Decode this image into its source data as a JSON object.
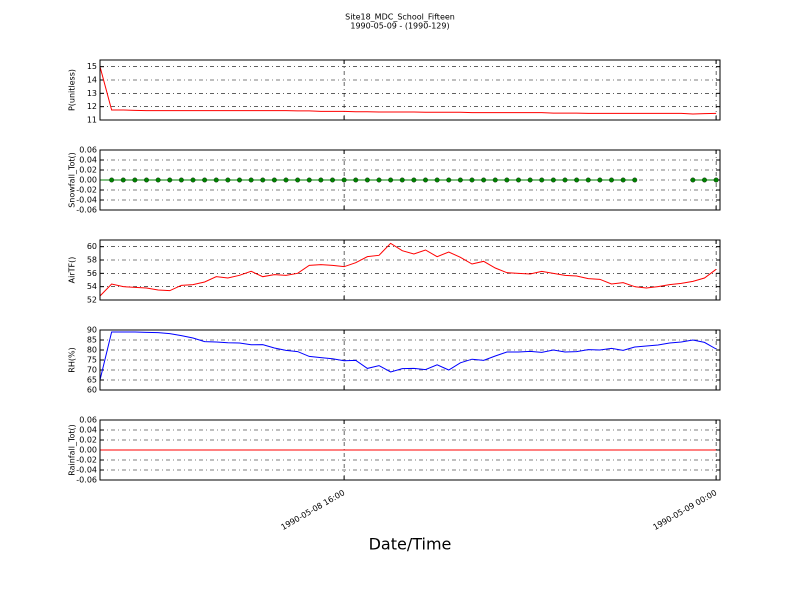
{
  "title": "Site18_MDC_School_Fifteen",
  "subtitle": "1990-05-09 - (1990-129)",
  "xlabel": "Date/Time",
  "x": [
    "1990-05-08 10:45",
    "1990-05-08 11:00",
    "1990-05-08 11:15",
    "1990-05-08 11:30",
    "1990-05-08 11:45",
    "1990-05-08 12:00",
    "1990-05-08 12:15",
    "1990-05-08 12:30",
    "1990-05-08 12:45",
    "1990-05-08 13:00",
    "1990-05-08 13:15",
    "1990-05-08 13:30",
    "1990-05-08 13:45",
    "1990-05-08 14:00",
    "1990-05-08 14:15",
    "1990-05-08 14:30",
    "1990-05-08 14:45",
    "1990-05-08 15:00",
    "1990-05-08 15:15",
    "1990-05-08 15:30",
    "1990-05-08 15:45",
    "1990-05-08 16:00",
    "1990-05-08 16:15",
    "1990-05-08 16:30",
    "1990-05-08 16:45",
    "1990-05-08 17:00",
    "1990-05-08 17:15",
    "1990-05-08 17:30",
    "1990-05-08 17:45",
    "1990-05-08 18:00",
    "1990-05-08 18:15",
    "1990-05-08 18:30",
    "1990-05-08 18:45",
    "1990-05-08 19:00",
    "1990-05-08 19:15",
    "1990-05-08 19:30",
    "1990-05-08 19:45",
    "1990-05-08 20:00",
    "1990-05-08 20:15",
    "1990-05-08 20:30",
    "1990-05-08 20:45",
    "1990-05-08 21:00",
    "1990-05-08 21:15",
    "1990-05-08 21:30",
    "1990-05-08 21:45",
    "1990-05-08 22:00",
    "1990-05-08 22:15",
    "1990-05-08 22:30",
    "1990-05-08 22:45",
    "1990-05-08 23:00",
    "1990-05-08 23:15",
    "1990-05-08 23:30",
    "1990-05-08 23:45",
    "1990-05-09 00:00"
  ],
  "xlim": [
    "1990-05-08 10:45",
    "1990-05-09 00:05"
  ],
  "xticks": [
    "1990-05-08 16:00",
    "1990-05-09 00:00"
  ],
  "chart_data": [
    {
      "type": "line",
      "ylabel": "P(unitless)",
      "color": "#ff0000",
      "ylim": [
        11,
        15.5
      ],
      "yticks": [
        11,
        12,
        13,
        14,
        15
      ],
      "grid": true,
      "values": [
        15.0,
        11.75,
        11.75,
        11.72,
        11.7,
        11.7,
        11.7,
        11.7,
        11.7,
        11.7,
        11.7,
        11.7,
        11.7,
        11.7,
        11.7,
        11.7,
        11.7,
        11.68,
        11.68,
        11.65,
        11.65,
        11.65,
        11.62,
        11.62,
        11.6,
        11.6,
        11.6,
        11.6,
        11.58,
        11.58,
        11.58,
        11.58,
        11.55,
        11.55,
        11.55,
        11.55,
        11.55,
        11.55,
        11.55,
        11.52,
        11.52,
        11.52,
        11.5,
        11.5,
        11.5,
        11.5,
        11.5,
        11.5,
        11.5,
        11.5,
        11.5,
        11.45,
        11.48,
        11.5
      ]
    },
    {
      "type": "line",
      "ylabel": "Snowfall_Tot()",
      "color": "#008000",
      "marker": true,
      "ylim": [
        -0.06,
        0.06
      ],
      "yticks": [
        -0.06,
        -0.04,
        -0.02,
        {
          "value": 0,
          "label": "0.00"
        },
        0.02,
        0.04,
        0.06
      ],
      "grid": true,
      "values": [
        0,
        0,
        0,
        0,
        0,
        0,
        0,
        0,
        0,
        0,
        0,
        0,
        0,
        0,
        0,
        0,
        0,
        0,
        0,
        0,
        0,
        0,
        0,
        0,
        0,
        0,
        0,
        0,
        0,
        0,
        0,
        0,
        0,
        0,
        0,
        0,
        0,
        0,
        0,
        0,
        0,
        0,
        0,
        0,
        0,
        0,
        0,
        null,
        null,
        null,
        null,
        0,
        0,
        0
      ]
    },
    {
      "type": "line",
      "ylabel": "AirTF()",
      "color": "#ff0000",
      "ylim": [
        52,
        61
      ],
      "yticks": [
        52,
        54,
        56,
        58,
        60
      ],
      "grid": true,
      "values": [
        52.6,
        54.4,
        54.0,
        53.9,
        53.8,
        53.5,
        53.4,
        54.2,
        54.3,
        54.7,
        55.5,
        55.3,
        55.7,
        56.3,
        55.5,
        55.8,
        55.7,
        56.0,
        57.2,
        57.3,
        57.2,
        57.0,
        57.6,
        58.5,
        58.7,
        60.5,
        59.4,
        58.9,
        59.5,
        58.5,
        59.2,
        58.4,
        57.4,
        57.8,
        56.8,
        56.1,
        56.0,
        55.9,
        56.3,
        56.0,
        55.7,
        55.6,
        55.2,
        55.1,
        54.4,
        54.6,
        54.0,
        53.8,
        54.0,
        54.3,
        54.5,
        54.8,
        55.3,
        56.6
      ]
    },
    {
      "type": "line",
      "ylabel": "RH(%)",
      "color": "#0000ff",
      "ylim": [
        60,
        90
      ],
      "yticks": [
        60,
        65,
        70,
        75,
        80,
        85,
        90
      ],
      "grid": true,
      "values": [
        65,
        89,
        89,
        89,
        88.8,
        88.7,
        88.2,
        87.2,
        86.0,
        84.2,
        84.0,
        83.6,
        83.5,
        82.6,
        82.7,
        81.0,
        79.8,
        79.2,
        76.8,
        76.2,
        75.6,
        74.6,
        74.8,
        70.8,
        72.2,
        69.0,
        70.7,
        70.8,
        70.2,
        72.6,
        70.0,
        73.6,
        75.4,
        74.8,
        77.0,
        79.0,
        79.0,
        79.3,
        78.8,
        80.0,
        79.0,
        79.2,
        80.2,
        80.0,
        80.8,
        79.8,
        81.5,
        82.0,
        82.5,
        83.5,
        84.0,
        85.0,
        83.8,
        80.5
      ]
    },
    {
      "type": "line",
      "ylabel": "Rainfall_Tot()",
      "color": "#ff0000",
      "ylim": [
        -0.06,
        0.06
      ],
      "yticks": [
        -0.06,
        -0.04,
        -0.02,
        {
          "value": 0,
          "label": "0.00"
        },
        0.02,
        0.04,
        0.06
      ],
      "grid": true,
      "show_x_labels": true,
      "values": [
        0,
        0,
        0,
        0,
        0,
        0,
        0,
        0,
        0,
        0,
        0,
        0,
        0,
        0,
        0,
        0,
        0,
        0,
        0,
        0,
        0,
        0,
        0,
        0,
        0,
        0,
        0,
        0,
        0,
        0,
        0,
        0,
        0,
        0,
        0,
        0,
        0,
        0,
        0,
        0,
        0,
        0,
        0,
        0,
        0,
        0,
        0,
        0,
        0,
        0,
        0,
        0,
        0,
        0
      ]
    }
  ]
}
